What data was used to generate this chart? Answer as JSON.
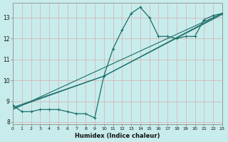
{
  "xlabel": "Humidex (Indice chaleur)",
  "bg_color": "#c8ecec",
  "grid_color": "#d4b8b8",
  "line_color": "#1a6e6a",
  "xlim": [
    0,
    23
  ],
  "ylim": [
    7.9,
    13.7
  ],
  "xticks": [
    0,
    1,
    2,
    3,
    4,
    5,
    6,
    7,
    8,
    9,
    10,
    11,
    12,
    13,
    14,
    15,
    16,
    17,
    18,
    19,
    20,
    21,
    22,
    23
  ],
  "yticks": [
    8,
    9,
    10,
    11,
    12,
    13
  ],
  "data_x": [
    0,
    1,
    2,
    3,
    4,
    5,
    6,
    7,
    8,
    9,
    10,
    11,
    12,
    13,
    14,
    15,
    16,
    17,
    18,
    19,
    20,
    21,
    22,
    23
  ],
  "data_y": [
    8.8,
    8.5,
    8.5,
    8.6,
    8.6,
    8.6,
    8.5,
    8.4,
    8.4,
    8.2,
    10.2,
    11.5,
    12.4,
    13.2,
    13.5,
    13.0,
    12.1,
    12.1,
    12.0,
    12.1,
    12.1,
    12.9,
    13.1,
    13.2
  ],
  "trend1_x": [
    0,
    23
  ],
  "trend1_y": [
    8.6,
    13.2
  ],
  "trend2_x": [
    0,
    10,
    23
  ],
  "trend2_y": [
    8.65,
    10.2,
    13.2
  ],
  "trend3_x": [
    0,
    10,
    23
  ],
  "trend3_y": [
    8.7,
    10.2,
    13.15
  ]
}
